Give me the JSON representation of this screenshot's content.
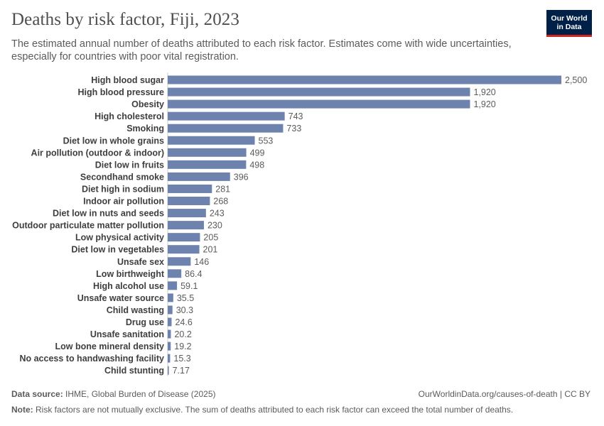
{
  "header": {
    "title": "Deaths by risk factor, Fiji, 2023",
    "subtitle": "The estimated annual number of deaths attributed to each risk factor. Estimates come with wide uncertainties, especially for countries with poor vital registration.",
    "logo_line1": "Our World",
    "logo_line2": "in Data"
  },
  "footer": {
    "source_label": "Data source:",
    "source_text": "IHME, Global Burden of Disease (2025)",
    "url": "OurWorldinData.org/causes-of-death | CC BY",
    "note_label": "Note:",
    "note_text": "Risk factors are not mutually exclusive. The sum of deaths attributed to each risk factor can exceed the total number of deaths."
  },
  "colors": {
    "bar": "#6d83ad",
    "label": "#3e3e3e",
    "value": "#5b5b5b"
  },
  "chart_data": {
    "type": "bar",
    "orientation": "horizontal",
    "title": "Deaths by risk factor, Fiji, 2023",
    "xlabel": "",
    "ylabel": "",
    "xlim": [
      0,
      2500
    ],
    "categories": [
      "High blood sugar",
      "High blood pressure",
      "Obesity",
      "High cholesterol",
      "Smoking",
      "Diet low in whole grains",
      "Air pollution (outdoor & indoor)",
      "Diet low in fruits",
      "Secondhand smoke",
      "Diet high in sodium",
      "Indoor air pollution",
      "Diet low in nuts and seeds",
      "Outdoor particulate matter pollution",
      "Low physical activity",
      "Diet low in vegetables",
      "Unsafe sex",
      "Low birthweight",
      "High alcohol use",
      "Unsafe water source",
      "Child wasting",
      "Drug use",
      "Unsafe sanitation",
      "Low bone mineral density",
      "No access to handwashing facility",
      "Child stunting"
    ],
    "values": [
      2500,
      1920,
      1920,
      743,
      733,
      553,
      499,
      498,
      396,
      281,
      268,
      243,
      230,
      205,
      201,
      146,
      86.4,
      59.1,
      35.5,
      30.3,
      24.6,
      20.2,
      19.2,
      15.3,
      7.17
    ],
    "value_labels": [
      "2,500",
      "1,920",
      "1,920",
      "743",
      "733",
      "553",
      "499",
      "498",
      "396",
      "281",
      "268",
      "243",
      "230",
      "205",
      "201",
      "146",
      "86.4",
      "59.1",
      "35.5",
      "30.3",
      "24.6",
      "20.2",
      "19.2",
      "15.3",
      "7.17"
    ]
  }
}
